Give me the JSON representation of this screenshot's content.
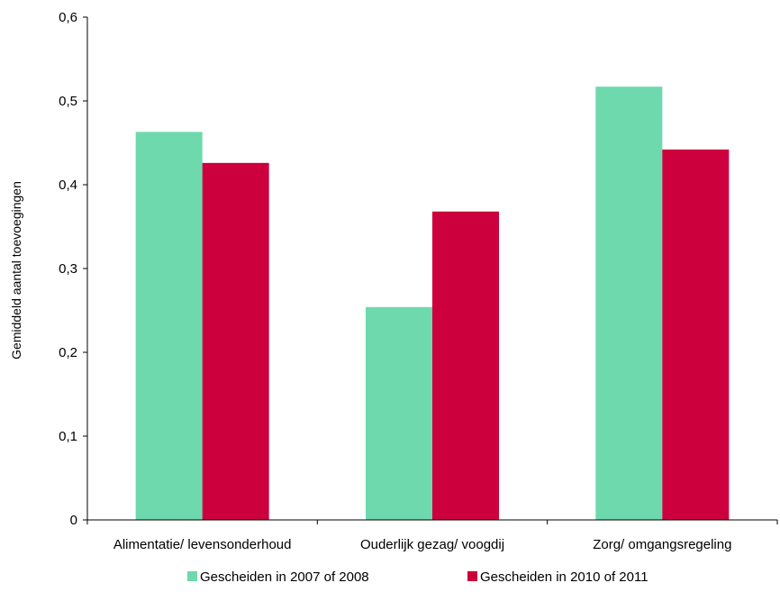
{
  "chart_data": {
    "type": "bar",
    "title": "",
    "xlabel": "",
    "ylabel": "Gemiddeld  aantal toevoegingen",
    "ylim": [
      0,
      0.6
    ],
    "yticks": [
      "0",
      "0,1",
      "0,2",
      "0,3",
      "0,4",
      "0,5",
      "0,6"
    ],
    "categories": [
      "Alimentatie/ levensonderhoud",
      "Ouderlijk gezag/ voogdij",
      "Zorg/ omgangsregeling"
    ],
    "series": [
      {
        "name": "Gescheiden in 2007 of 2008",
        "color": "#6dd9ad",
        "values": [
          0.463,
          0.254,
          0.517
        ]
      },
      {
        "name": "Gescheiden in 2010 of 2011",
        "color": "#cc003d",
        "values": [
          0.426,
          0.368,
          0.442
        ]
      }
    ],
    "grid": false,
    "legend": "bottom"
  }
}
